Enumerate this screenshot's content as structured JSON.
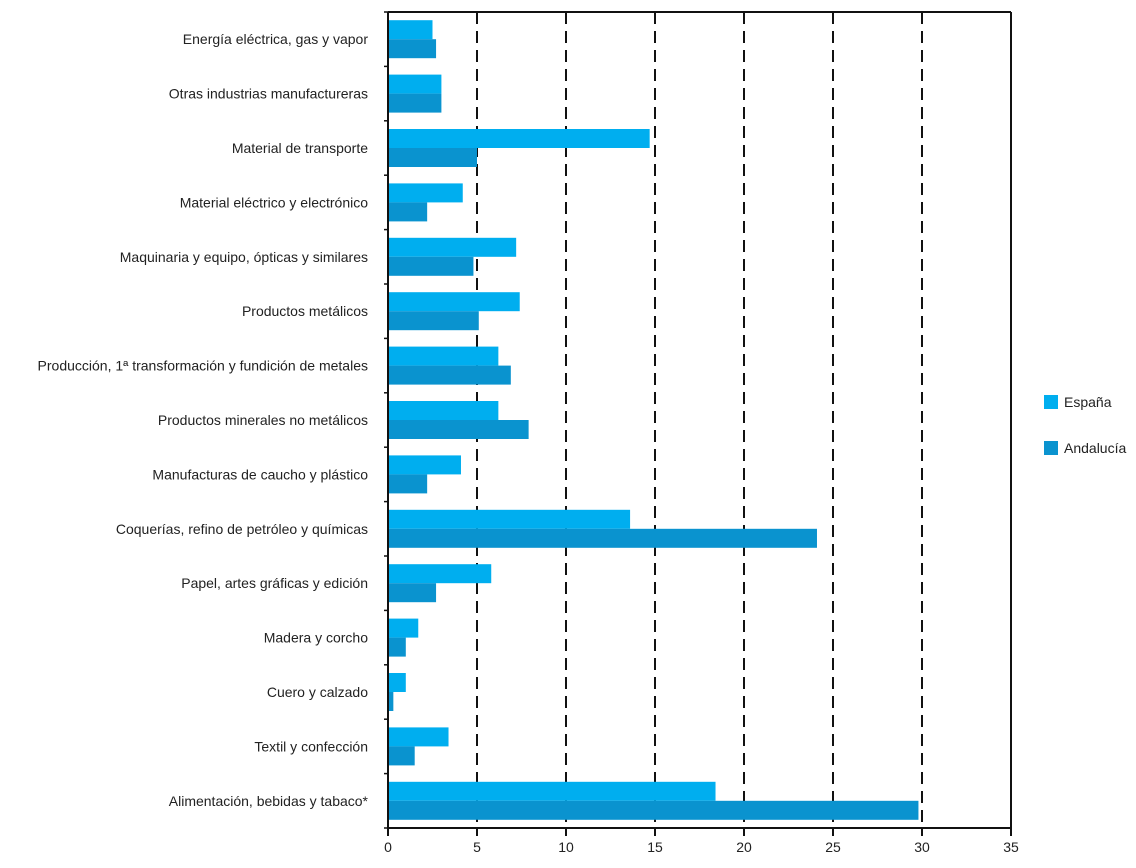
{
  "chart_data": {
    "type": "bar",
    "orientation": "horizontal",
    "title": "",
    "xlabel": "",
    "ylabel": "",
    "xlim": [
      0,
      35
    ],
    "x_ticks": [
      0,
      5,
      10,
      15,
      20,
      25,
      30,
      35
    ],
    "grid": "vertical dashed",
    "legend_position": "right",
    "categories": [
      "Energía eléctrica, gas y vapor",
      "Otras industrias manufactureras",
      "Material de transporte",
      "Material eléctrico y electrónico",
      "Maquinaria y equipo, ópticas y similares",
      "Productos metálicos",
      "Producción, 1ª transformación y fundición de metales",
      "Productos minerales no metálicos",
      "Manufacturas de caucho y plástico",
      "Coquerías, refino de petróleo y químicas",
      "Papel, artes gráficas y edición",
      "Madera y corcho",
      "Cuero y calzado",
      "Textil y confección",
      "Alimentación, bebidas y tabaco*"
    ],
    "series": [
      {
        "name": "España",
        "color": "#00AEEF",
        "values": [
          2.5,
          3.0,
          14.7,
          4.2,
          7.2,
          7.4,
          6.2,
          6.2,
          4.1,
          13.6,
          5.8,
          1.7,
          1.0,
          3.4,
          18.4
        ]
      },
      {
        "name": "Andalucía",
        "color": "#0A93CF",
        "values": [
          2.7,
          3.0,
          5.0,
          2.2,
          4.8,
          5.1,
          6.9,
          7.9,
          2.2,
          24.1,
          2.7,
          1.0,
          0.3,
          1.5,
          29.8
        ]
      }
    ]
  }
}
